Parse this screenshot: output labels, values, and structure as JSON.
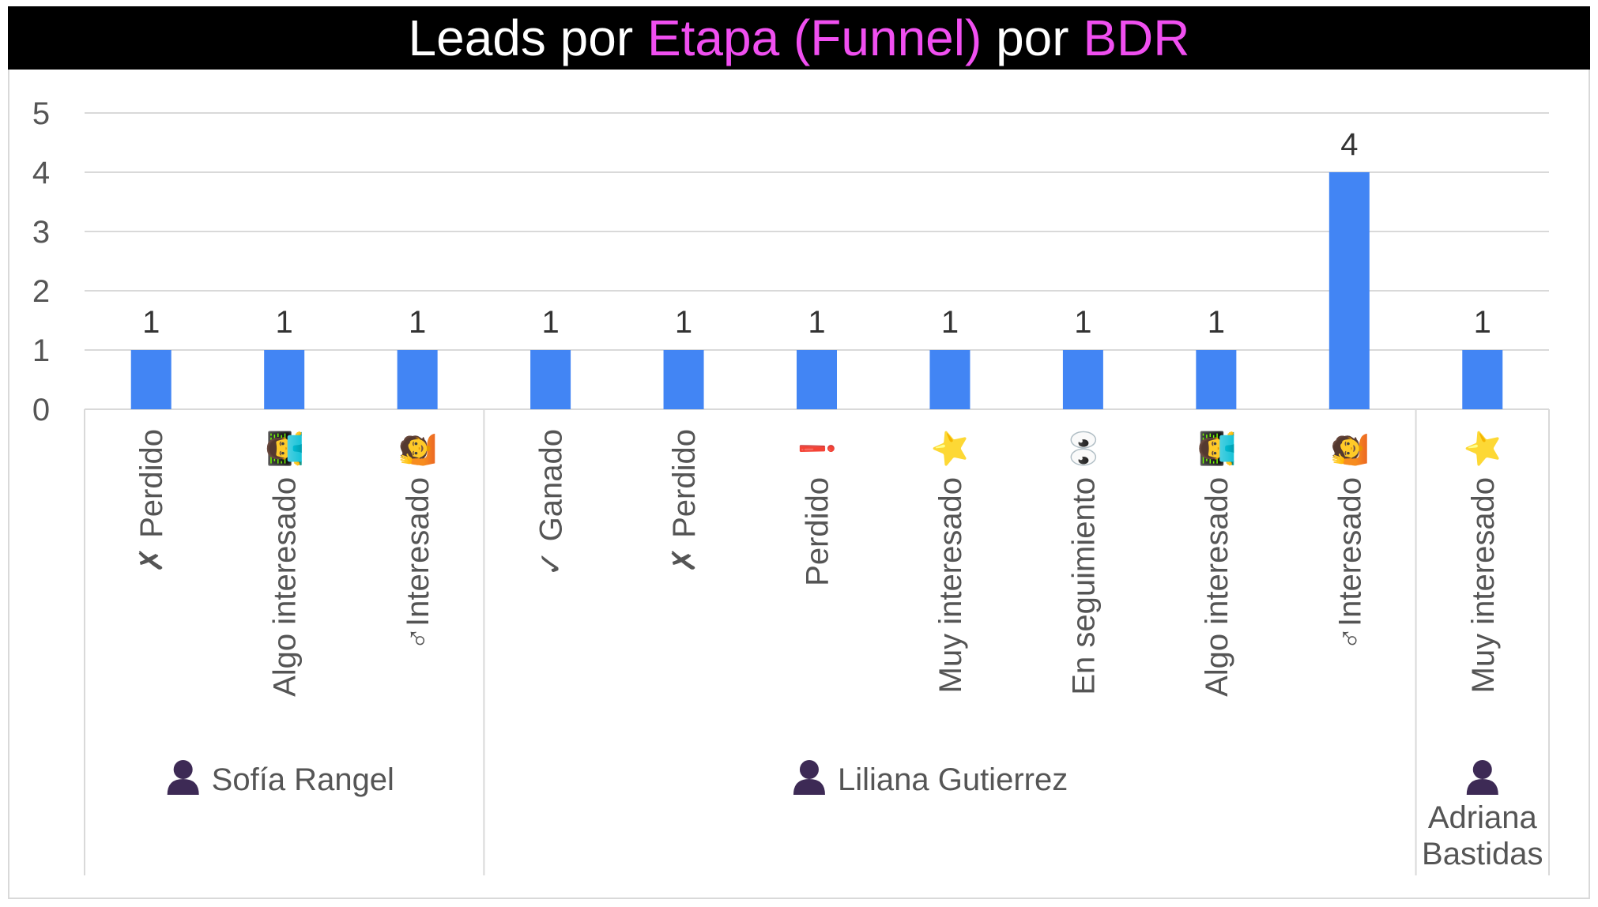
{
  "title": {
    "segments": [
      {
        "text": "Leads por ",
        "color": "#ffffff"
      },
      {
        "text": "Etapa (Funnel)",
        "color": "#f04ff0"
      },
      {
        "text": " por ",
        "color": "#ffffff"
      },
      {
        "text": "BDR",
        "color": "#f04ff0"
      }
    ]
  },
  "colors": {
    "bar": "#4285f4",
    "grid": "#d9d9d9",
    "axis_text": "#555555",
    "label_text": "#333333",
    "title_bg": "#000000",
    "accent": "#f04ff0"
  },
  "chart_data": {
    "type": "bar",
    "title": "Leads por Etapa (Funnel) por BDR",
    "xlabel": "",
    "ylabel": "",
    "ylim": [
      0,
      5
    ],
    "yticks": [
      "0",
      "1",
      "2",
      "3",
      "4",
      "5"
    ],
    "grid": true,
    "legend": "none",
    "data_labels": true,
    "categories": [
      {
        "stage": "Perdido",
        "icon": "✗",
        "icon_name": "cross-mark-icon",
        "icon_position": "before"
      },
      {
        "stage": "Algo interesado",
        "icon": "👨‍💻",
        "icon_name": "technologist-icon",
        "icon_position": "after"
      },
      {
        "stage": "♂Interesado",
        "icon": "🙋",
        "icon_name": "person-raising-hand-icon",
        "icon_position": "after"
      },
      {
        "stage": "Ganado",
        "icon": "✓",
        "icon_name": "check-mark-icon",
        "icon_position": "before"
      },
      {
        "stage": "Perdido",
        "icon": "✗",
        "icon_name": "cross-mark-icon",
        "icon_position": "before"
      },
      {
        "stage": "Perdido",
        "icon": "❗",
        "icon_name": "exclamation-icon",
        "icon_position": "after"
      },
      {
        "stage": "Muy interesado",
        "icon": "⭐",
        "icon_name": "star-icon",
        "icon_position": "after"
      },
      {
        "stage": "En seguimiento",
        "icon": "👀",
        "icon_name": "eyes-icon",
        "icon_position": "after"
      },
      {
        "stage": "Algo interesado",
        "icon": "👨‍💻",
        "icon_name": "technologist-icon",
        "icon_position": "after"
      },
      {
        "stage": "♂Interesado",
        "icon": "🙋",
        "icon_name": "person-raising-hand-icon",
        "icon_position": "after"
      },
      {
        "stage": "Muy interesado",
        "icon": "⭐",
        "icon_name": "star-icon",
        "icon_position": "after"
      }
    ],
    "values": [
      1,
      1,
      1,
      1,
      1,
      1,
      1,
      1,
      1,
      4,
      1
    ],
    "groups": [
      {
        "name": "Sofía Rangel",
        "lines": [
          "Sofía Rangel"
        ],
        "icon_name": "person-silhouette-icon",
        "start": 0,
        "count": 3
      },
      {
        "name": "Liliana Gutierrez",
        "lines": [
          "Liliana Gutierrez"
        ],
        "icon_name": "person-silhouette-icon",
        "start": 3,
        "count": 7
      },
      {
        "name": "Adriana Bastidas",
        "lines": [
          "Adriana",
          "Bastidas"
        ],
        "icon_name": "person-silhouette-icon",
        "start": 10,
        "count": 1
      }
    ]
  }
}
